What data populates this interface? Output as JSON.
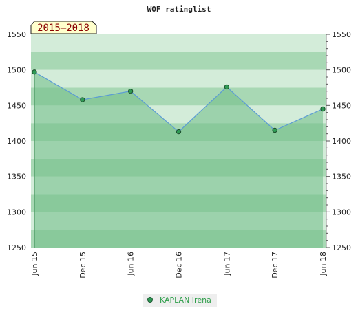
{
  "chart_data": {
    "type": "line",
    "title": "WOF ratinglist",
    "period_label": "2015–2018",
    "categories": [
      "Jun 15",
      "Dec 15",
      "Jun 16",
      "Dec 16",
      "Jun 17",
      "Dec 17",
      "Jun 18"
    ],
    "series": [
      {
        "name": "KAPLAN Irena",
        "values": [
          1497,
          1458,
          1470,
          1413,
          1476,
          1415,
          1445
        ]
      }
    ],
    "ylim": [
      1250,
      1550
    ],
    "yticks": [
      1250,
      1300,
      1350,
      1400,
      1450,
      1500,
      1550
    ],
    "y_axis_sides": [
      "left",
      "right"
    ],
    "area_fill": true,
    "legend_position": "bottom-center",
    "colors": {
      "line": "#5b9bd5",
      "marker": "#2f9a55",
      "area": "#6fbe86",
      "bands_dark": "#a8d8b4",
      "bands_light": "#d3ecd9",
      "badge_bg": "#ffffcc"
    }
  }
}
